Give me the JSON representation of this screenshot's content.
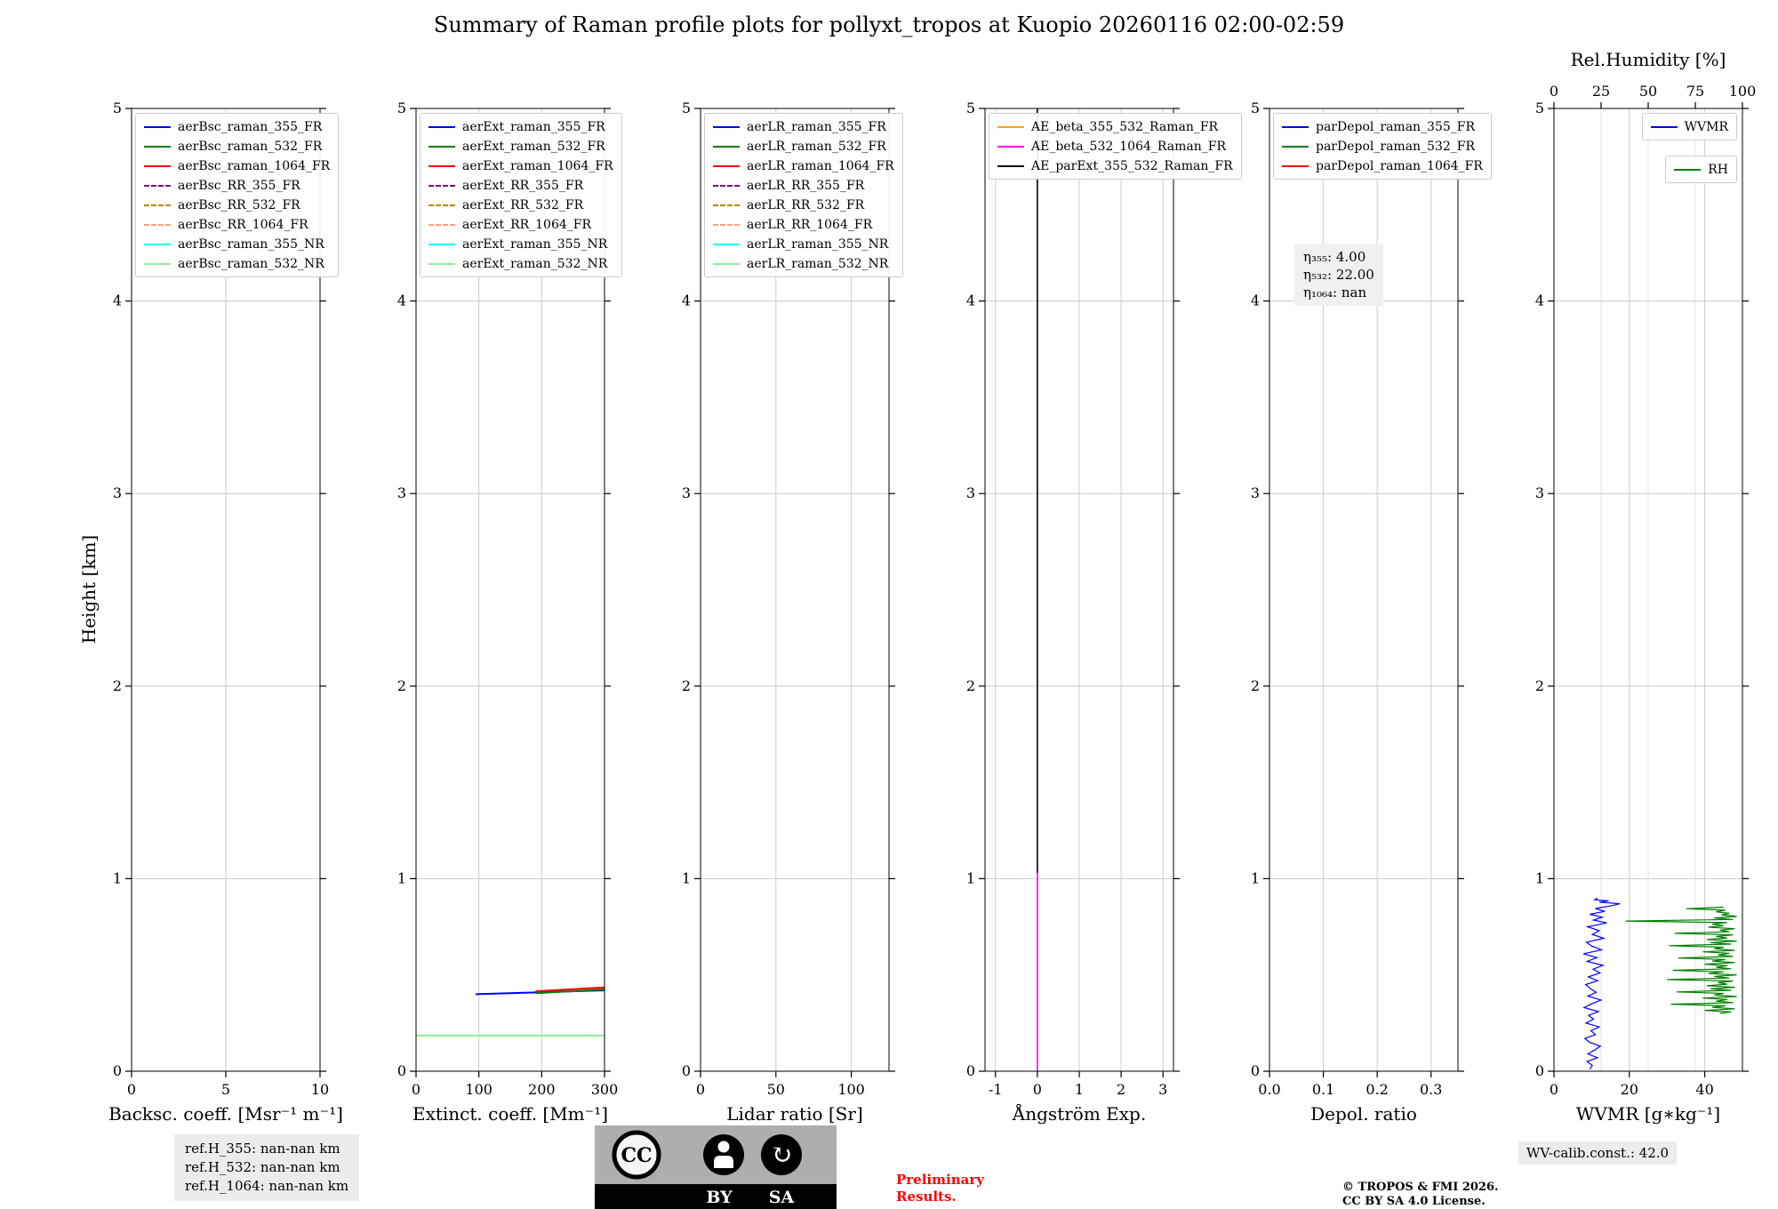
{
  "title": "Summary of Raman profile plots for pollyxt_tropos at Kuopio 20260116 02:00-02:59",
  "ylabel": "Height [km]",
  "footer": {
    "ref_box": [
      "ref.H_355: nan-nan km",
      "ref.H_532: nan-nan km",
      "ref.H_1064: nan-nan km"
    ],
    "preliminary": [
      "Preliminary",
      "Results."
    ],
    "preliminary_color": "#ff0000",
    "copyright": [
      "© TROPOS & FMI 2026.",
      "CC BY SA 4.0 License."
    ],
    "wv_calib": "WV-calib.const.: 42.0",
    "badge": {
      "cc_text": "CC",
      "by_text": "BY",
      "sa_text": "SA",
      "sa_arrow": "↻"
    }
  },
  "chart_data": [
    {
      "id": "backscatter",
      "type": "line",
      "xlabel": "Backsc. coeff. [Msr⁻¹ m⁻¹]",
      "xlim": [
        0,
        10
      ],
      "xticks": [
        0,
        5,
        10
      ],
      "xtick_labels": [
        "0",
        "5",
        "10"
      ],
      "ylim": [
        0,
        5
      ],
      "yticks": [
        0,
        1,
        2,
        3,
        4,
        5
      ],
      "ytick_labels": [
        "0",
        "1",
        "2",
        "3",
        "4",
        "5"
      ],
      "grid": true,
      "legend_position": "upper-left",
      "legend_groups": [
        [
          {
            "label": "aerBsc_raman_355_FR",
            "color": "#0000ff",
            "dash": false
          },
          {
            "label": "aerBsc_raman_532_FR",
            "color": "#008000",
            "dash": false
          },
          {
            "label": "aerBsc_raman_1064_FR",
            "color": "#ff0000",
            "dash": false
          },
          {
            "label": "aerBsc_RR_355_FR",
            "color": "#800080",
            "dash": true
          },
          {
            "label": "aerBsc_RR_532_FR",
            "color": "#b8860b",
            "dash": true
          },
          {
            "label": "aerBsc_RR_1064_FR",
            "color": "#ffa07a",
            "dash": true
          },
          {
            "label": "aerBsc_raman_355_NR",
            "color": "#00ffff",
            "dash": false
          },
          {
            "label": "aerBsc_raman_532_NR",
            "color": "#90ee90",
            "dash": false
          }
        ]
      ],
      "series": []
    },
    {
      "id": "extinction",
      "type": "line",
      "xlabel": "Extinct. coeff. [Mm⁻¹]",
      "xlim": [
        0,
        300
      ],
      "xticks": [
        0,
        100,
        200,
        300
      ],
      "xtick_labels": [
        "0",
        "100",
        "200",
        "300"
      ],
      "ylim": [
        0,
        5
      ],
      "yticks": [
        0,
        1,
        2,
        3,
        4,
        5
      ],
      "ytick_labels": [
        "0",
        "1",
        "2",
        "3",
        "4",
        "5"
      ],
      "grid": true,
      "legend_position": "upper-left",
      "legend_groups": [
        [
          {
            "label": "aerExt_raman_355_FR",
            "color": "#0000ff",
            "dash": false
          },
          {
            "label": "aerExt_raman_532_FR",
            "color": "#008000",
            "dash": false
          },
          {
            "label": "aerExt_raman_1064_FR",
            "color": "#ff0000",
            "dash": false
          },
          {
            "label": "aerExt_RR_355_FR",
            "color": "#800080",
            "dash": true
          },
          {
            "label": "aerExt_RR_532_FR",
            "color": "#b8860b",
            "dash": true
          },
          {
            "label": "aerExt_RR_1064_FR",
            "color": "#ffa07a",
            "dash": true
          },
          {
            "label": "aerExt_raman_355_NR",
            "color": "#00ffff",
            "dash": false
          },
          {
            "label": "aerExt_raman_532_NR",
            "color": "#90ee90",
            "dash": false
          }
        ]
      ],
      "series": [
        {
          "name": "aerExt_raman_532_NR",
          "color": "#90ee90",
          "width": 2,
          "points": [
            [
              0,
              0.185
            ],
            [
              300,
              0.185
            ]
          ]
        },
        {
          "name": "aerExt_raman_355_FR",
          "color": "#0000ff",
          "width": 2,
          "points": [
            [
              95,
              0.4
            ],
            [
              300,
              0.42
            ]
          ]
        },
        {
          "name": "aerExt_raman_532_FR",
          "color": "#008000",
          "width": 2,
          "points": [
            [
              190,
              0.405
            ],
            [
              300,
              0.425
            ]
          ]
        },
        {
          "name": "aerExt_raman_1064_FR",
          "color": "#ff0000",
          "width": 2,
          "points": [
            [
              190,
              0.415
            ],
            [
              300,
              0.435
            ]
          ]
        }
      ]
    },
    {
      "id": "lidar-ratio",
      "type": "line",
      "xlabel": "Lidar ratio [Sr]",
      "xlim": [
        0,
        125
      ],
      "xticks": [
        0,
        50,
        100
      ],
      "xtick_labels": [
        "0",
        "50",
        "100"
      ],
      "ylim": [
        0,
        5
      ],
      "yticks": [
        0,
        1,
        2,
        3,
        4,
        5
      ],
      "ytick_labels": [
        "0",
        "1",
        "2",
        "3",
        "4",
        "5"
      ],
      "grid": true,
      "legend_position": "upper-left",
      "legend_groups": [
        [
          {
            "label": "aerLR_raman_355_FR",
            "color": "#0000ff",
            "dash": false
          },
          {
            "label": "aerLR_raman_532_FR",
            "color": "#008000",
            "dash": false
          },
          {
            "label": "aerLR_raman_1064_FR",
            "color": "#ff0000",
            "dash": false
          },
          {
            "label": "aerLR_RR_355_FR",
            "color": "#800080",
            "dash": true
          },
          {
            "label": "aerLR_RR_532_FR",
            "color": "#b8860b",
            "dash": true
          },
          {
            "label": "aerLR_RR_1064_FR",
            "color": "#ffa07a",
            "dash": true
          },
          {
            "label": "aerLR_raman_355_NR",
            "color": "#00ffff",
            "dash": false
          },
          {
            "label": "aerLR_raman_532_NR",
            "color": "#90ee90",
            "dash": false
          }
        ]
      ],
      "series": []
    },
    {
      "id": "angstroem",
      "type": "line",
      "xlabel": "Ångström Exp.",
      "xlim": [
        -1.25,
        3.25
      ],
      "xticks": [
        -1,
        0,
        1,
        2,
        3
      ],
      "xtick_labels": [
        "-1",
        "0",
        "1",
        "2",
        "3"
      ],
      "ylim": [
        0,
        5
      ],
      "yticks": [
        0,
        1,
        2,
        3,
        4,
        5
      ],
      "ytick_labels": [
        "0",
        "1",
        "2",
        "3",
        "4",
        "5"
      ],
      "grid": true,
      "legend_position": "upper-left",
      "legend_groups": [
        [
          {
            "label": "AE_beta_355_532_Raman_FR",
            "color": "#ffa500",
            "dash": false
          },
          {
            "label": "AE_beta_532_1064_Raman_FR",
            "color": "#ff00ff",
            "dash": false
          },
          {
            "label": "AE_parExt_355_532_Raman_FR",
            "color": "#000000",
            "dash": false
          }
        ]
      ],
      "series": [
        {
          "name": "AE_beta_532_1064_Raman_FR",
          "color": "#ff00ff",
          "width": 1.6,
          "points": [
            [
              0,
              0
            ],
            [
              0,
              1.03
            ]
          ]
        },
        {
          "name": "AE_parExt_355_532_Raman_FR",
          "color": "#000000",
          "width": 1.6,
          "points": [
            [
              0,
              1.03
            ],
            [
              0,
              5
            ]
          ]
        }
      ]
    },
    {
      "id": "depol-ratio",
      "type": "line",
      "xlabel": "Depol. ratio",
      "xlim": [
        0,
        0.35
      ],
      "xticks": [
        0,
        0.1,
        0.2,
        0.3
      ],
      "xtick_labels": [
        "0.0",
        "0.1",
        "0.2",
        "0.3"
      ],
      "ylim": [
        0,
        5
      ],
      "yticks": [
        0,
        1,
        2,
        3,
        4,
        5
      ],
      "ytick_labels": [
        "0",
        "1",
        "2",
        "3",
        "4",
        "5"
      ],
      "grid": true,
      "legend_position": "upper-left",
      "legend_groups": [
        [
          {
            "label": "parDepol_raman_355_FR",
            "color": "#0000ff",
            "dash": false
          },
          {
            "label": "parDepol_raman_532_FR",
            "color": "#008000",
            "dash": false
          },
          {
            "label": "parDepol_raman_1064_FR",
            "color": "#ff0000",
            "dash": false
          }
        ]
      ],
      "annotation": {
        "lines": [
          "η₃₅₅: 4.00",
          "η₅₃₂: 22.00",
          "η₁₀₆₄: nan"
        ]
      },
      "series": []
    },
    {
      "id": "wvmr-rh",
      "type": "line",
      "xlabel": "WVMR [g∗kg⁻¹]",
      "xlim": [
        0,
        50
      ],
      "xticks": [
        0,
        20,
        40
      ],
      "xtick_labels": [
        "0",
        "20",
        "40"
      ],
      "ylim": [
        0,
        5
      ],
      "yticks": [
        0,
        1,
        2,
        3,
        4,
        5
      ],
      "ytick_labels": [
        "0",
        "1",
        "2",
        "3",
        "4",
        "5"
      ],
      "grid": true,
      "top_axis": {
        "label": "Rel.Humidity [%]",
        "xlim": [
          0,
          100
        ],
        "xticks": [
          0,
          25,
          50,
          75,
          100
        ],
        "xtick_labels": [
          "0",
          "25",
          "50",
          "75",
          "100"
        ]
      },
      "legend_position": "upper-right",
      "legend_groups": [
        [
          {
            "label": "WVMR",
            "color": "#0000ff",
            "dash": false
          }
        ],
        [
          {
            "label": "RH",
            "color": "#008000",
            "dash": false
          }
        ]
      ],
      "series": [
        {
          "name": "WVMR",
          "color": "#0000ff",
          "width": 1.2,
          "axis": "bottom",
          "points": [
            [
              9.5,
              0.01
            ],
            [
              10.2,
              0.03
            ],
            [
              8.8,
              0.05
            ],
            [
              11.5,
              0.07
            ],
            [
              9.0,
              0.09
            ],
            [
              10.8,
              0.11
            ],
            [
              12.3,
              0.13
            ],
            [
              9.4,
              0.15
            ],
            [
              8.2,
              0.17
            ],
            [
              11.0,
              0.19
            ],
            [
              9.8,
              0.21
            ],
            [
              12.0,
              0.23
            ],
            [
              8.5,
              0.25
            ],
            [
              10.5,
              0.27
            ],
            [
              9.2,
              0.29
            ],
            [
              11.8,
              0.31
            ],
            [
              8.0,
              0.33
            ],
            [
              10.0,
              0.35
            ],
            [
              12.5,
              0.37
            ],
            [
              9.0,
              0.39
            ],
            [
              11.2,
              0.41
            ],
            [
              9.6,
              0.43
            ],
            [
              8.4,
              0.45
            ],
            [
              11.6,
              0.47
            ],
            [
              9.1,
              0.49
            ],
            [
              12.2,
              0.51
            ],
            [
              10.4,
              0.53
            ],
            [
              13.0,
              0.55
            ],
            [
              8.8,
              0.57
            ],
            [
              11.4,
              0.59
            ],
            [
              7.8,
              0.61
            ],
            [
              12.6,
              0.63
            ],
            [
              10.0,
              0.65
            ],
            [
              8.6,
              0.67
            ],
            [
              13.2,
              0.69
            ],
            [
              10.2,
              0.71
            ],
            [
              12.0,
              0.73
            ],
            [
              8.9,
              0.75
            ],
            [
              14.0,
              0.77
            ],
            [
              10.5,
              0.785
            ],
            [
              12.8,
              0.8
            ],
            [
              9.5,
              0.815
            ],
            [
              13.5,
              0.83
            ],
            [
              11.0,
              0.845
            ],
            [
              15.5,
              0.86
            ],
            [
              17.5,
              0.87
            ],
            [
              12.0,
              0.878
            ],
            [
              14.5,
              0.885
            ],
            [
              10.8,
              0.89
            ],
            [
              11.5,
              0.9
            ]
          ]
        },
        {
          "name": "RH",
          "color": "#008000",
          "width": 1.2,
          "axis": "top",
          "points": [
            [
              88,
              0.3
            ],
            [
              94,
              0.308
            ],
            [
              80,
              0.316
            ],
            [
              96,
              0.324
            ],
            [
              84,
              0.332
            ],
            [
              91,
              0.34
            ],
            [
              62,
              0.348
            ],
            [
              95,
              0.356
            ],
            [
              86,
              0.364
            ],
            [
              92,
              0.372
            ],
            [
              79,
              0.38
            ],
            [
              97,
              0.388
            ],
            [
              85,
              0.396
            ],
            [
              90,
              0.404
            ],
            [
              65,
              0.412
            ],
            [
              94,
              0.42
            ],
            [
              83,
              0.428
            ],
            [
              96,
              0.436
            ],
            [
              81,
              0.444
            ],
            [
              92,
              0.452
            ],
            [
              87,
              0.46
            ],
            [
              95,
              0.468
            ],
            [
              60,
              0.476
            ],
            [
              93,
              0.484
            ],
            [
              85,
              0.492
            ],
            [
              97,
              0.5
            ],
            [
              82,
              0.508
            ],
            [
              90,
              0.516
            ],
            [
              63,
              0.524
            ],
            [
              94,
              0.532
            ],
            [
              86,
              0.54
            ],
            [
              92,
              0.548
            ],
            [
              80,
              0.556
            ],
            [
              96,
              0.564
            ],
            [
              84,
              0.572
            ],
            [
              91,
              0.58
            ],
            [
              66,
              0.588
            ],
            [
              95,
              0.596
            ],
            [
              87,
              0.604
            ],
            [
              93,
              0.612
            ],
            [
              79,
              0.62
            ],
            [
              96,
              0.628
            ],
            [
              85,
              0.636
            ],
            [
              90,
              0.644
            ],
            [
              61,
              0.652
            ],
            [
              94,
              0.66
            ],
            [
              83,
              0.668
            ],
            [
              97,
              0.676
            ],
            [
              81,
              0.684
            ],
            [
              92,
              0.692
            ],
            [
              86,
              0.7
            ],
            [
              95,
              0.708
            ],
            [
              64,
              0.716
            ],
            [
              93,
              0.724
            ],
            [
              88,
              0.732
            ],
            [
              96,
              0.74
            ],
            [
              82,
              0.748
            ],
            [
              90,
              0.756
            ],
            [
              84,
              0.764
            ],
            [
              92,
              0.772
            ],
            [
              38,
              0.78
            ],
            [
              95,
              0.788
            ],
            [
              85,
              0.796
            ],
            [
              97,
              0.804
            ],
            [
              89,
              0.812
            ],
            [
              93,
              0.82
            ],
            [
              86,
              0.828
            ],
            [
              91,
              0.836
            ],
            [
              70,
              0.844
            ],
            [
              90,
              0.852
            ]
          ]
        }
      ]
    }
  ]
}
